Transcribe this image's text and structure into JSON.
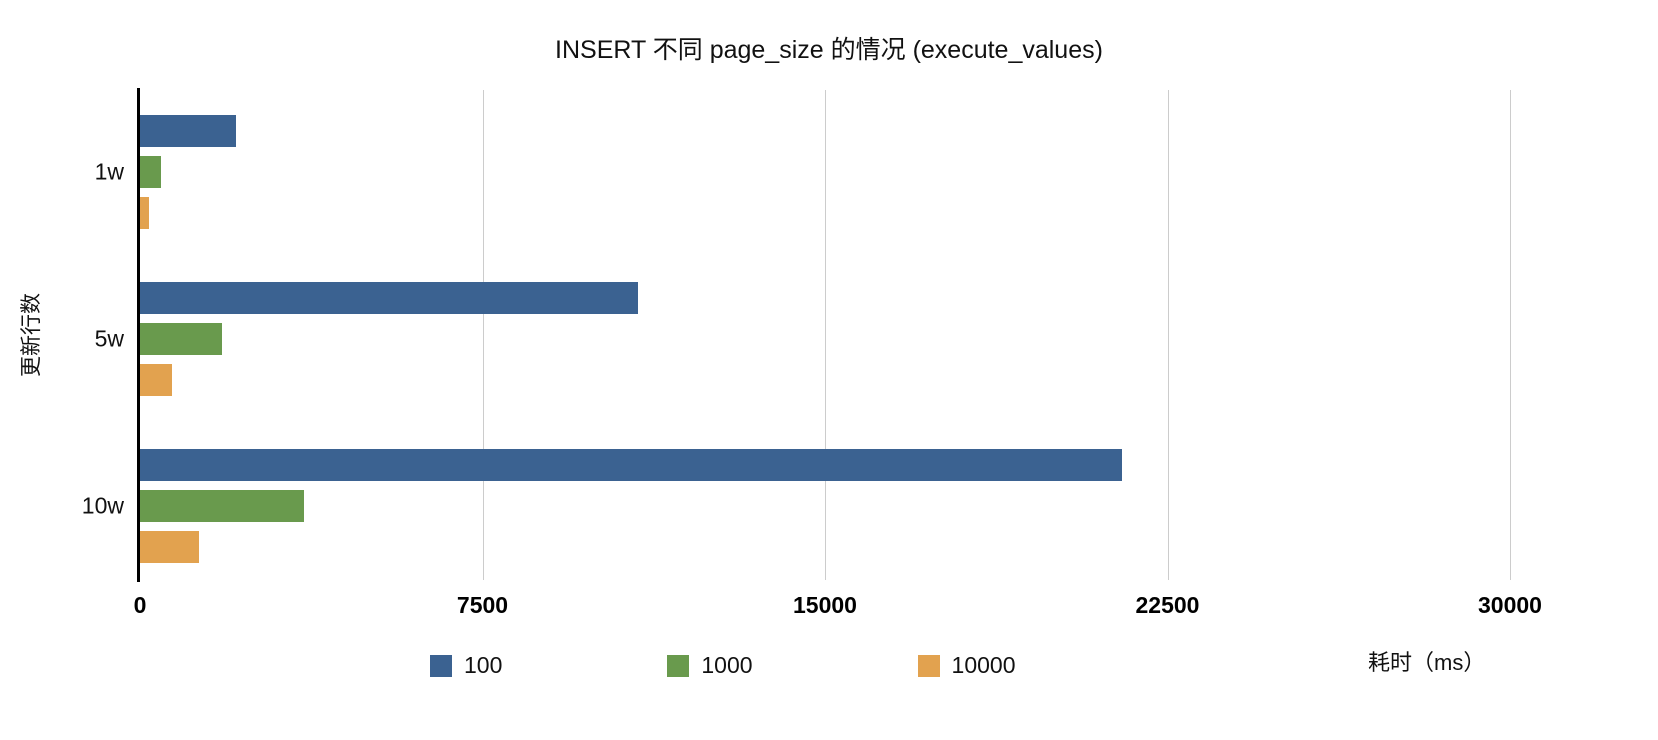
{
  "chart_data": {
    "type": "bar",
    "orientation": "horizontal",
    "title": "INSERT 不同 page_size 的情况 (execute_values)",
    "ylabel": "更新行数",
    "xlabel": "耗时（ms）",
    "categories": [
      "1w",
      "5w",
      "10w"
    ],
    "series": [
      {
        "name": "100",
        "color": "#3b6291",
        "values": [
          2100,
          10900,
          21500
        ]
      },
      {
        "name": "1000",
        "color": "#699a4d",
        "values": [
          450,
          1800,
          3600
        ]
      },
      {
        "name": "10000",
        "color": "#e2a24f",
        "values": [
          200,
          700,
          1300
        ]
      }
    ],
    "xticks": [
      0,
      7500,
      15000,
      22500,
      30000
    ],
    "xlim": [
      0,
      30000
    ],
    "grid": "vertical",
    "legend_position": "bottom"
  }
}
